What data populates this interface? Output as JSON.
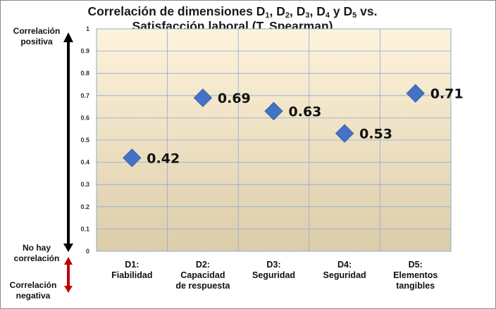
{
  "chart_data": {
    "type": "scatter",
    "title": {
      "line1_parts": [
        "Correlación de dimensiones D",
        "1",
        ", D",
        "2",
        ", D",
        "3",
        ", D",
        "4",
        "  y D",
        "5",
        " vs."
      ],
      "line2": "Satisfacción laboral (T. Spearman)"
    },
    "categories": [
      [
        "D1:",
        "Fiabilidad"
      ],
      [
        "D2:",
        "Capacidad",
        "de respuesta"
      ],
      [
        "D3:",
        "Seguridad"
      ],
      [
        "D4:",
        "Seguridad"
      ],
      [
        "D5:",
        "Elementos",
        "tangibles"
      ]
    ],
    "values": [
      0.42,
      0.69,
      0.63,
      0.53,
      0.71
    ],
    "data_labels": [
      "0.42",
      "0.69",
      "0.63",
      "0.53",
      "0.71"
    ],
    "ylim": [
      0,
      1
    ],
    "yticks": [
      "0",
      "0.1",
      "0.2",
      "0.3",
      "0.4",
      "0.5",
      "0.6",
      "0.7",
      "0.8",
      "0.9",
      "1"
    ],
    "grid": true,
    "marker": "diamond",
    "colors": {
      "marker": "#4472C4",
      "bg_top": "#FEF3DC",
      "bg_bottom": "#DCCDA9",
      "grid": "#8EA9D8",
      "arrow_pos": "#000000",
      "arrow_neg": "#C00000"
    }
  },
  "annotations": {
    "positive": [
      "Correlación",
      "positiva"
    ],
    "none": [
      "No hay",
      "correlación"
    ],
    "negative": [
      "Correlación",
      "negativa"
    ]
  }
}
